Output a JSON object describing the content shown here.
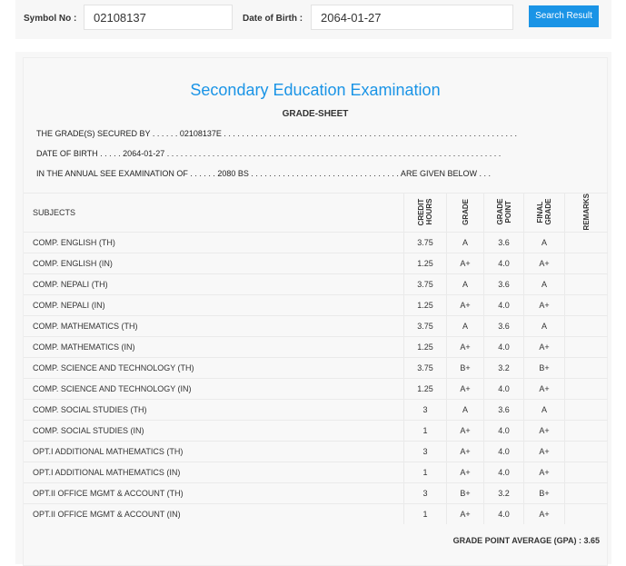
{
  "search": {
    "symbol_label": "Symbol No :",
    "symbol_value": "02108137",
    "dob_label": "Date of Birth :",
    "dob_value": "2064-01-27",
    "button": "Search Result"
  },
  "sheet": {
    "title": "Secondary Education Examination",
    "subtitle": "GRADE-SHEET",
    "line1": "THE GRADE(S) SECURED BY . . . . . . 02108137E . . . . . . . . . . . . . . . . . . . . . . . . . . . . . . . . . . . . . . . . . . . . . . . . . . . . . . . . . . . . . . . . .",
    "line2": "DATE OF BIRTH . . . . . 2064-01-27 . . . . . . . . . . . . . . . . . . . . . . . . . . . . . . . . . . . . . . . . . . . . . . . . . . . . . . . . . . . . . . . . . . . . . . . . . .",
    "line3": "IN THE ANNUAL SEE EXAMINATION OF . . . . . . 2080 BS . . . . . . . . . . . . . . . . . . . . . . . . . . . . . . . . . ARE GIVEN BELOW . . .",
    "headers": [
      "SUBJECTS",
      "CREDIT HOURS",
      "GRADE",
      "GRADE POINT",
      "FINAL GRADE",
      "REMARKS"
    ],
    "rows": [
      [
        "COMP. ENGLISH (TH)",
        "3.75",
        "A",
        "3.6",
        "A"
      ],
      [
        "COMP. ENGLISH (IN)",
        "1.25",
        "A+",
        "4.0",
        "A+"
      ],
      [
        "COMP. NEPALI (TH)",
        "3.75",
        "A",
        "3.6",
        "A"
      ],
      [
        "COMP. NEPALI (IN)",
        "1.25",
        "A+",
        "4.0",
        "A+"
      ],
      [
        "COMP. MATHEMATICS (TH)",
        "3.75",
        "A",
        "3.6",
        "A"
      ],
      [
        "COMP. MATHEMATICS (IN)",
        "1.25",
        "A+",
        "4.0",
        "A+"
      ],
      [
        "COMP. SCIENCE AND TECHNOLOGY (TH)",
        "3.75",
        "B+",
        "3.2",
        "B+"
      ],
      [
        "COMP. SCIENCE AND TECHNOLOGY (IN)",
        "1.25",
        "A+",
        "4.0",
        "A+"
      ],
      [
        "COMP. SOCIAL STUDIES (TH)",
        "3",
        "A",
        "3.6",
        "A"
      ],
      [
        "COMP. SOCIAL STUDIES (IN)",
        "1",
        "A+",
        "4.0",
        "A+"
      ],
      [
        "OPT.I ADDITIONAL MATHEMATICS (TH)",
        "3",
        "A+",
        "4.0",
        "A+"
      ],
      [
        "OPT.I ADDITIONAL MATHEMATICS (IN)",
        "1",
        "A+",
        "4.0",
        "A+"
      ],
      [
        "OPT.II OFFICE MGMT & ACCOUNT (TH)",
        "3",
        "B+",
        "3.2",
        "B+"
      ],
      [
        "OPT.II OFFICE MGMT & ACCOUNT (IN)",
        "1",
        "A+",
        "4.0",
        "A+"
      ]
    ],
    "gpa": "GRADE POINT AVERAGE (GPA) : 3.65"
  }
}
